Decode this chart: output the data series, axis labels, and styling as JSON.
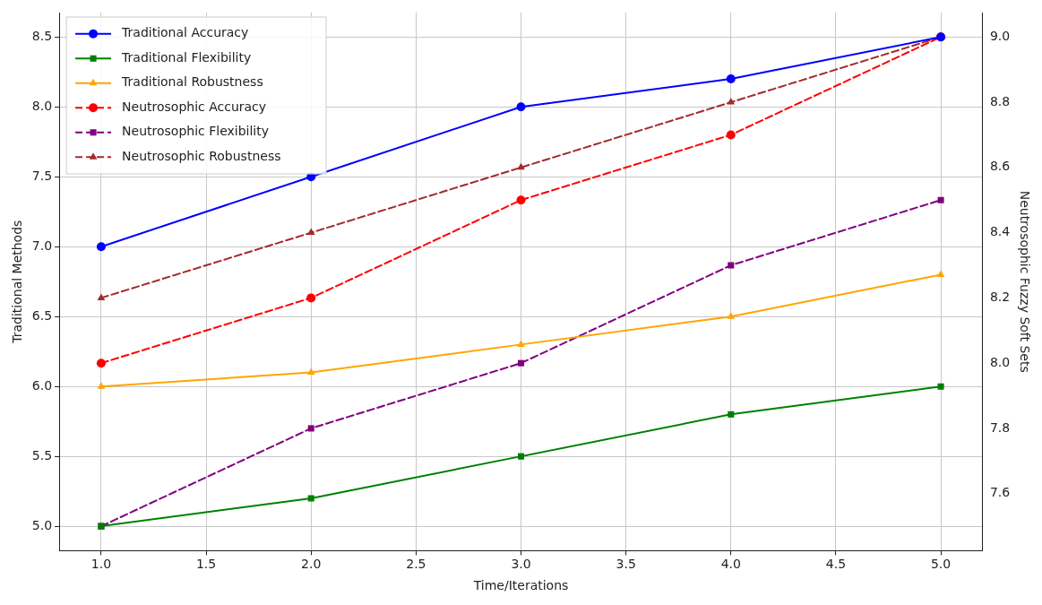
{
  "chart_data": {
    "type": "line",
    "xlabel": "Time/Iterations",
    "ylabel": "Traditional Methods",
    "y2label": "Neutrosophic Fuzzy Soft Sets",
    "x": [
      1,
      2,
      3,
      4,
      5
    ],
    "xlim": [
      0.8,
      5.2
    ],
    "xticks": [
      {
        "value": 1,
        "label": "1.0"
      },
      1.5,
      {
        "value": 2,
        "label": "2.0"
      },
      2.5,
      {
        "value": 3,
        "label": "3.0"
      },
      3.5,
      {
        "value": 4,
        "label": "4.0"
      },
      4.5,
      {
        "value": 5,
        "label": "5.0"
      }
    ],
    "ylim": [
      4.825,
      8.675
    ],
    "yticks": [
      {
        "value": 5,
        "label": "5.0"
      },
      5.5,
      {
        "value": 6,
        "label": "6.0"
      },
      6.5,
      {
        "value": 7,
        "label": "7.0"
      },
      7.5,
      {
        "value": 8,
        "label": "8.0"
      },
      8.5
    ],
    "y2lim": [
      7.425,
      9.075
    ],
    "y2ticks": [
      7.6,
      7.8,
      {
        "value": 8,
        "label": "8.0"
      },
      8.2,
      8.4,
      8.6,
      8.8,
      {
        "value": 9,
        "label": "9.0"
      }
    ],
    "grid": true,
    "legend": "top left",
    "series": [
      {
        "name": "Traditional Accuracy",
        "color": "#0000ff",
        "marker": "circle",
        "line_style": "solid",
        "values": [
          7.0,
          7.5,
          8.0,
          8.2,
          8.5
        ]
      },
      {
        "name": "Traditional Flexibility",
        "color": "#008000",
        "marker": "square",
        "line_style": "solid",
        "values": [
          5.0,
          5.2,
          5.5,
          5.8,
          6.0
        ]
      },
      {
        "name": "Traditional Robustness",
        "color": "#ffa500",
        "marker": "triangle",
        "line_style": "solid",
        "values": [
          6.0,
          6.1,
          6.3,
          6.5,
          6.8
        ]
      },
      {
        "name": "Neutrosophic Accuracy",
        "color": "#ff0000",
        "marker": "circle",
        "line_style": "dashed",
        "axis": "y2",
        "values": [
          8.0,
          8.2,
          8.5,
          8.7,
          9.0
        ]
      },
      {
        "name": "Neutrosophic Flexibility",
        "color": "#800080",
        "marker": "square",
        "line_style": "dashed",
        "axis": "y2",
        "values": [
          7.5,
          7.8,
          8.0,
          8.3,
          8.5
        ]
      },
      {
        "name": "Neutrosophic Robustness",
        "color": "#a52a2a",
        "marker": "triangle",
        "line_style": "dashed",
        "axis": "y2",
        "values": [
          8.2,
          8.4,
          8.6,
          8.8,
          9.0
        ]
      }
    ]
  }
}
